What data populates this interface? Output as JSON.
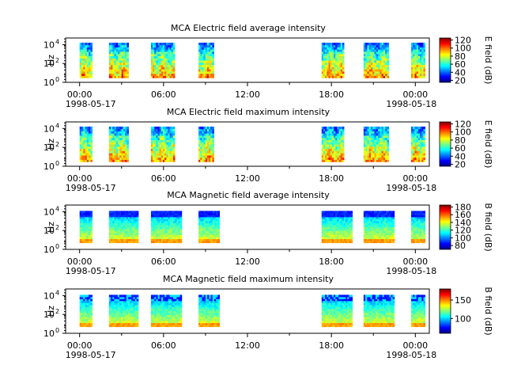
{
  "colors": {
    "jet_scale": [
      "#00007f",
      "#0000ff",
      "#007fff",
      "#00ffff",
      "#7fff7f",
      "#ffff00",
      "#ff7f00",
      "#ff0000",
      "#7f0000"
    ]
  },
  "chart_data": [
    {
      "type": "heatmap",
      "title": "MCA  Electric field average intensity",
      "ylabel": "Hz",
      "y_scale": "log",
      "y_ticks": [
        "10",
        "10",
        "10"
      ],
      "y_tick_exponents": [
        "0",
        "2",
        "4"
      ],
      "x_ticks": [
        "00:00",
        "06:00",
        "12:00",
        "18:00",
        "00:00"
      ],
      "x_date_labels": [
        "1998-05-17",
        "1998-05-18"
      ],
      "colorbar_label": "E field (dB)",
      "colorbar_ticks": [
        "20",
        "40",
        "60",
        "80",
        "100",
        "120"
      ],
      "colorbar_range": [
        15,
        125
      ],
      "data_intervals_hours": [
        [
          0.0,
          0.9
        ],
        [
          2.1,
          3.5
        ],
        [
          5.1,
          6.8
        ],
        [
          8.5,
          9.6
        ],
        [
          17.3,
          18.9
        ],
        [
          20.3,
          22.1
        ],
        [
          23.7,
          24.7
        ]
      ],
      "freq_range": [
        3,
        16000
      ]
    },
    {
      "type": "heatmap",
      "title": "MCA  Electric field maximum intensity",
      "ylabel": "Hz",
      "y_scale": "log",
      "y_ticks": [
        "10",
        "10",
        "10"
      ],
      "y_tick_exponents": [
        "0",
        "2",
        "4"
      ],
      "x_ticks": [
        "00:00",
        "06:00",
        "12:00",
        "18:00",
        "00:00"
      ],
      "x_date_labels": [
        "1998-05-17",
        "1998-05-18"
      ],
      "colorbar_label": "E field (dB)",
      "colorbar_ticks": [
        "20",
        "40",
        "60",
        "80",
        "100",
        "120"
      ],
      "colorbar_range": [
        15,
        125
      ],
      "data_intervals_hours": [
        [
          0.0,
          0.9
        ],
        [
          2.1,
          3.5
        ],
        [
          5.1,
          6.8
        ],
        [
          8.5,
          9.6
        ],
        [
          17.3,
          18.9
        ],
        [
          20.3,
          22.1
        ],
        [
          23.7,
          24.7
        ]
      ],
      "freq_range": [
        3,
        16000
      ]
    },
    {
      "type": "heatmap",
      "title": "MCA  Magnetic field average intensity",
      "ylabel": "Hz",
      "y_scale": "log",
      "y_ticks": [
        "10",
        "10",
        "10"
      ],
      "y_tick_exponents": [
        "0",
        "2",
        "4"
      ],
      "x_ticks": [
        "00:00",
        "06:00",
        "12:00",
        "18:00",
        "00:00"
      ],
      "x_date_labels": [
        "1998-05-17",
        "1998-05-18"
      ],
      "colorbar_label": "B field (dB)",
      "colorbar_ticks": [
        "80",
        "100",
        "120",
        "140",
        "160",
        "180"
      ],
      "colorbar_range": [
        70,
        185
      ],
      "data_intervals_hours": [
        [
          0.0,
          0.9
        ],
        [
          2.1,
          4.2
        ],
        [
          5.1,
          7.3
        ],
        [
          8.5,
          10.0
        ],
        [
          17.3,
          19.5
        ],
        [
          20.3,
          22.5
        ],
        [
          23.7,
          24.7
        ]
      ],
      "freq_range": [
        5,
        12000
      ]
    },
    {
      "type": "heatmap",
      "title": "MCA  Magnetic field maximum intensity",
      "ylabel": "Hz",
      "y_scale": "log",
      "y_ticks": [
        "10",
        "10",
        "10"
      ],
      "y_tick_exponents": [
        "0",
        "2",
        "4"
      ],
      "x_ticks": [
        "00:00",
        "06:00",
        "12:00",
        "18:00",
        "00:00"
      ],
      "x_date_labels": [
        "1998-05-17",
        "1998-05-18"
      ],
      "colorbar_label": "B field (dB)",
      "colorbar_ticks": [
        "100",
        "150"
      ],
      "colorbar_range": [
        60,
        180
      ],
      "data_intervals_hours": [
        [
          0.0,
          0.9
        ],
        [
          2.1,
          4.2
        ],
        [
          5.1,
          7.3
        ],
        [
          8.5,
          10.0
        ],
        [
          17.3,
          19.5
        ],
        [
          20.3,
          22.5
        ],
        [
          23.7,
          24.7
        ]
      ],
      "freq_range": [
        5,
        12000
      ]
    }
  ]
}
